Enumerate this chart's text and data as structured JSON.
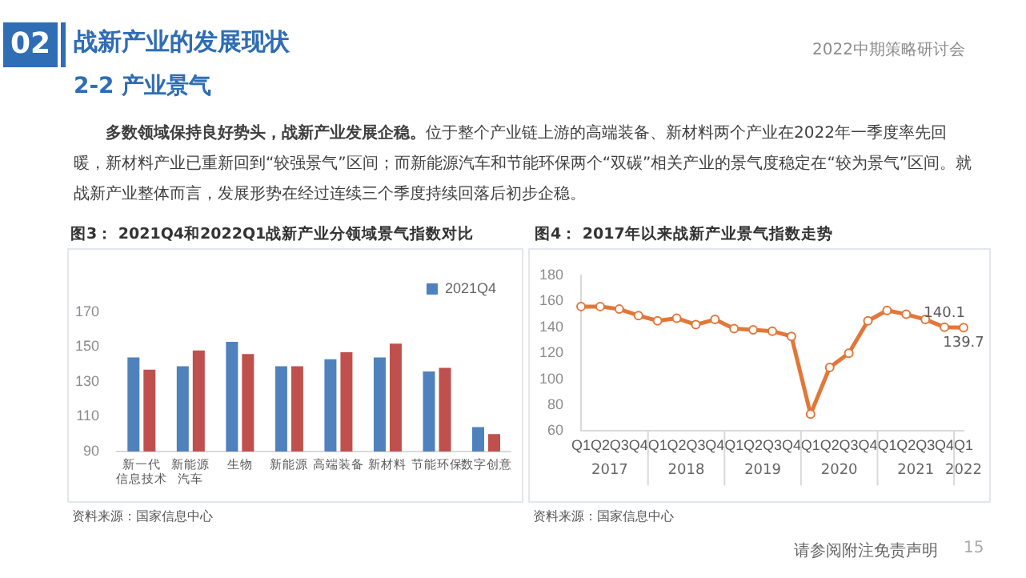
{
  "chart_data": [
    {
      "type": "bar",
      "title": "图3： 2021Q4和2022Q1战新产业分领域景气指数对比",
      "categories": [
        "新一代信息技术",
        "新能源汽车",
        "生物",
        "新能源",
        "高端装备",
        "新材料",
        "节能环保",
        "数字创意"
      ],
      "series": [
        {
          "name": "2021Q4",
          "color": "#4f81bd",
          "values": [
            144,
            139,
            153,
            139,
            143,
            144,
            136,
            104
          ]
        },
        {
          "color": "#c0504d",
          "values": [
            137,
            148,
            146,
            139,
            147,
            152,
            138,
            100
          ]
        }
      ],
      "ylim": [
        90,
        170
      ],
      "yticks": [
        90,
        110,
        130,
        150,
        170
      ],
      "grid": false,
      "legend": "top right",
      "annotations": [
        "02",
        "战新产业的发展现状",
        "2-2 产业景气",
        "2022中期策略研讨会",
        "多数领域保持良好势头，战新产业发展企稳。",
        "位于整个产业链上游的高端装备、新材料两个产业在2022年一季度率先回暖，新材料产业已重新回到“较强景气”区间；而新能源汽车和节能环保两个“双碳”相关产业的景气度稳定在“较为景气”区间。就战新产业整体而言，发展形势在经过连续三个季度持续回落后初步企稳。",
        "资料来源：国家信息中心",
        "请参阅附注免责声明",
        "15"
      ]
    },
    {
      "type": "line",
      "title": "图4： 2017年以来战新产业景气指数走势",
      "categories": [
        "Q1",
        "Q2",
        "Q3",
        "Q4",
        "Q1",
        "Q2",
        "Q3",
        "Q4",
        "Q1",
        "Q2",
        "Q3",
        "Q4",
        "Q1",
        "Q2",
        "Q3",
        "Q4",
        "Q1",
        "Q2",
        "Q3",
        "Q4",
        "Q1"
      ],
      "series": [
        {
          "color": "#e2773a",
          "values": [
            156,
            156,
            154,
            149,
            145,
            147,
            142,
            146,
            139,
            138,
            137,
            133,
            73,
            109,
            120,
            145,
            153,
            150,
            146,
            140.1,
            139.7
          ],
          "value_labels": [
            null,
            null,
            null,
            null,
            null,
            null,
            null,
            null,
            null,
            null,
            null,
            null,
            null,
            null,
            null,
            null,
            null,
            null,
            null,
            "140.1",
            "139.7"
          ]
        }
      ],
      "ylim": [
        60,
        180
      ],
      "yticks": [
        60,
        80,
        100,
        120,
        140,
        160,
        180
      ],
      "grid": false,
      "legend": false,
      "marker": "circle",
      "line_style": "solid",
      "annotations": [
        "资料来源：国家信息中心",
        "2017",
        "2018",
        "2019",
        "2020",
        "2021",
        "2022"
      ]
    }
  ]
}
